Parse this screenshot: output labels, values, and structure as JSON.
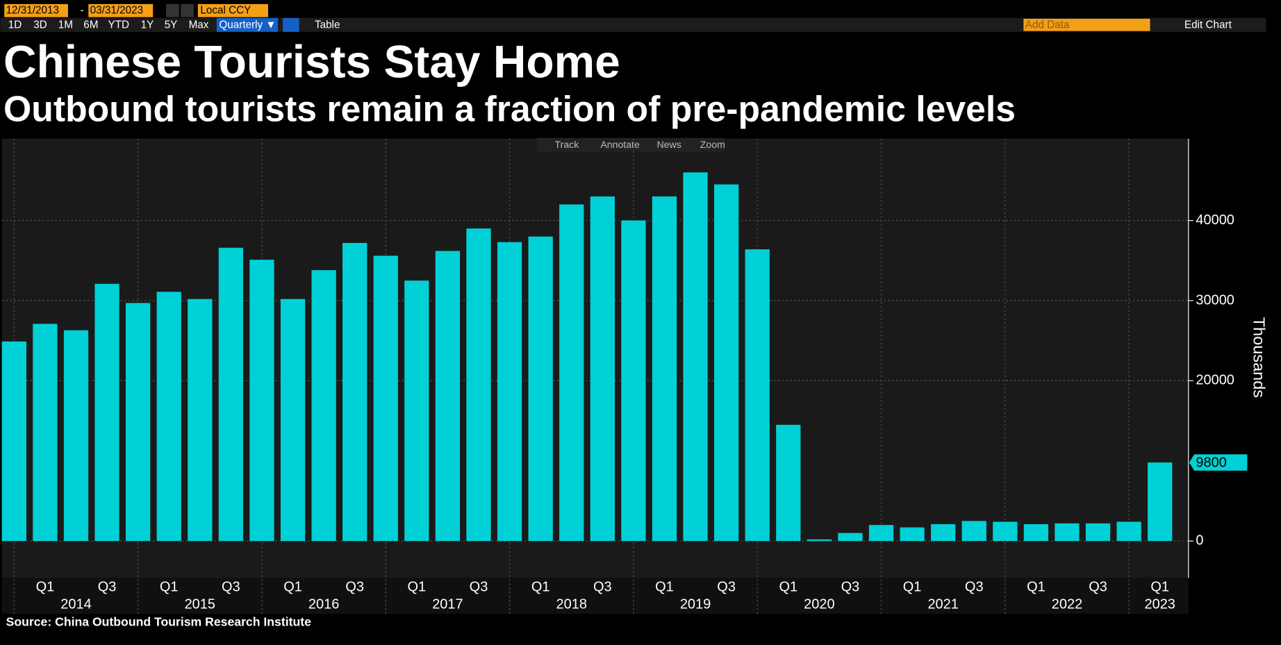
{
  "toolbar": {
    "start_date": "12/31/2013",
    "separator": "-",
    "end_date": "03/31/2023",
    "currency": "Local CCY",
    "ranges": [
      "1D",
      "3D",
      "1M",
      "6M",
      "YTD",
      "1Y",
      "5Y",
      "Max"
    ],
    "frequency": "Quarterly ▼",
    "table": "Table",
    "add_data": "Add Data",
    "edit_chart": "Edit Chart",
    "tools": [
      "Track",
      "Annotate",
      "News",
      "Zoom"
    ]
  },
  "chart_data": {
    "type": "bar",
    "title": "Chinese Tourists Stay Home",
    "subtitle": "Outbound tourists remain a fraction of pre-pandemic levels",
    "y_axis_label": "Thousands",
    "source": "Source: China Outbound Tourism Research Institute",
    "categories": [
      null,
      "Q1",
      null,
      "Q3",
      null,
      "Q1",
      null,
      "Q3",
      null,
      "Q1",
      null,
      "Q3",
      null,
      "Q1",
      null,
      "Q3",
      null,
      "Q1",
      null,
      "Q3",
      null,
      "Q1",
      null,
      "Q3",
      null,
      "Q1",
      null,
      "Q3",
      null,
      "Q1",
      null,
      "Q3",
      null,
      "Q1",
      null,
      "Q3",
      null,
      "Q1"
    ],
    "year_labels": [
      "2014",
      "2015",
      "2016",
      "2017",
      "2018",
      "2019",
      "2020",
      "2021",
      "2022",
      "2023"
    ],
    "values": [
      24900,
      27100,
      26300,
      32100,
      29700,
      31100,
      30200,
      36600,
      35100,
      30200,
      33800,
      37200,
      35600,
      32500,
      36200,
      39000,
      37300,
      38000,
      42000,
      43000,
      40000,
      43000,
      46000,
      44500,
      36400,
      14500,
      200,
      1000,
      2000,
      1700,
      2100,
      2500,
      2400,
      2100,
      2200,
      2200,
      2400,
      9800
    ],
    "color": "#00d1d6",
    "ylim": [
      -4600,
      50200
    ],
    "yticks": [
      0,
      20000,
      30000,
      40000
    ],
    "grid": true
  }
}
